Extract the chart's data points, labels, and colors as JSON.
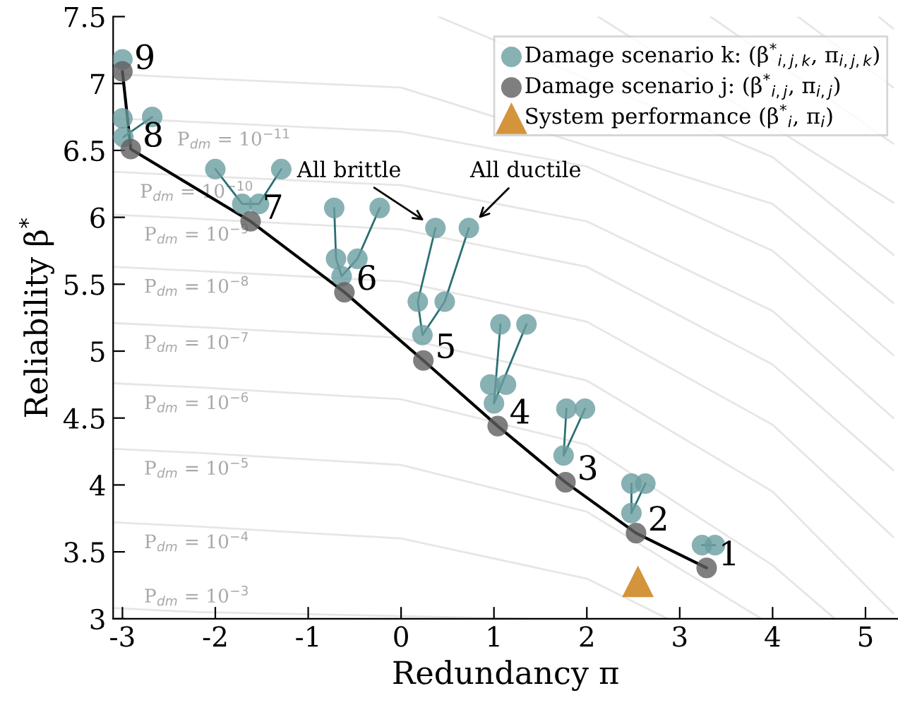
{
  "chart_data": {
    "type": "scatter",
    "xlabel": "Redundancy π",
    "ylabel": "Reliability β$^{*}$",
    "xlim": [
      -3.1,
      5.35
    ],
    "ylim": [
      3,
      7.5
    ],
    "xticks": [
      -3,
      -2,
      -1,
      0,
      1,
      2,
      3,
      4,
      5
    ],
    "yticks": [
      3,
      3.5,
      4,
      4.5,
      5,
      5.5,
      6,
      6.5,
      7,
      7.5
    ],
    "grid": false,
    "legend": "top right",
    "series": [
      {
        "type": "line",
        "color": "#e6e6e6",
        "x": [
          -3.1,
          -2.2,
          0,
          1.35
        ],
        "values": [
          3.08,
          3.05,
          3.02,
          3.0
        ]
      },
      {
        "type": "line",
        "color": "#e6e6e6",
        "x": [
          -3.1,
          -2.2,
          0,
          2,
          2.87
        ],
        "values": [
          3.72,
          3.69,
          3.6,
          3.3,
          3.0
        ]
      },
      {
        "type": "line",
        "color": "#e6e6e6",
        "x": [
          -3.1,
          -2.2,
          0,
          2,
          3.88
        ],
        "values": [
          4.27,
          4.24,
          4.15,
          3.8,
          3.0
        ]
      },
      {
        "type": "line",
        "color": "#e6e6e6",
        "x": [
          -3.1,
          -2.2,
          0,
          2,
          4,
          4.67
        ],
        "values": [
          4.76,
          4.73,
          4.64,
          4.3,
          3.4,
          3.0
        ]
      },
      {
        "type": "line",
        "color": "#e6e6e6",
        "x": [
          -3.1,
          -2.2,
          0,
          2,
          4,
          5.3
        ],
        "values": [
          5.21,
          5.18,
          5.1,
          4.78,
          3.95,
          3.04
        ]
      },
      {
        "type": "line",
        "color": "#e6e6e6",
        "x": [
          -3.1,
          -2.2,
          0,
          2,
          4,
          5.3
        ],
        "values": [
          5.63,
          5.6,
          5.52,
          5.22,
          4.45,
          3.61
        ]
      },
      {
        "type": "line",
        "color": "#e6e6e6",
        "x": [
          -3.1,
          -2.2,
          0,
          2,
          4,
          5.3
        ],
        "values": [
          6.02,
          5.99,
          5.91,
          5.63,
          4.9,
          4.11
        ]
      },
      {
        "type": "line",
        "color": "#e6e6e6",
        "x": [
          -3.1,
          -2.2,
          0,
          2,
          4,
          5.3
        ],
        "values": [
          6.34,
          6.31,
          6.24,
          5.97,
          5.3,
          4.5
        ]
      },
      {
        "type": "line",
        "color": "#e6e6e6",
        "x": [
          -3.1,
          -1.8,
          0,
          2,
          4,
          5.3
        ],
        "values": [
          6.74,
          6.7,
          6.64,
          6.38,
          5.75,
          4.97
        ]
      },
      {
        "type": "line",
        "color": "#e6e6e6",
        "x": [
          -3.1,
          -2.2,
          0,
          4,
          5.3
        ],
        "values": [
          7.07,
          7.04,
          6.97,
          6.1,
          5.36
        ]
      },
      {
        "type": "line",
        "color": "#e6e6e6",
        "x": [
          0.4,
          4,
          5.3
        ],
        "values": [
          7.5,
          6.45,
          5.72
        ]
      },
      {
        "type": "line",
        "color": "#e6e6e6",
        "x": [
          2.12,
          5.3
        ],
        "values": [
          7.5,
          6.11
        ]
      },
      {
        "type": "line",
        "color": "#e6e6e6",
        "x": [
          3.33,
          5.3
        ],
        "values": [
          7.5,
          6.55
        ]
      },
      {
        "type": "line",
        "color": "#e6e6e6",
        "x": [
          4.27,
          5.3
        ],
        "values": [
          7.5,
          6.97
        ]
      },
      {
        "type": "line",
        "color": "#e6e6e6",
        "x": [
          5.14,
          5.3
        ],
        "values": [
          7.5,
          7.41
        ]
      },
      {
        "type": "line",
        "color": "#000000",
        "x": [
          -3.0,
          -2.91,
          -1.62,
          -0.61,
          0.24,
          1.04,
          1.77,
          2.53,
          3.29
        ],
        "values": [
          7.09,
          6.51,
          5.97,
          5.44,
          4.93,
          4.44,
          4.02,
          3.64,
          3.38
        ]
      },
      {
        "type": "line",
        "color": "#2a6f73",
        "x": [
          -2.99,
          -2.68
        ],
        "values": [
          6.6,
          6.75
        ]
      },
      {
        "type": "line",
        "color": "#2a6f73",
        "x": [
          -2.0,
          -1.71,
          -1.53,
          -1.29
        ],
        "values": [
          6.36,
          6.1,
          6.1,
          6.36
        ]
      },
      {
        "type": "line",
        "color": "#2a6f73",
        "x": [
          -0.72,
          -0.7,
          -0.64,
          -0.47,
          -0.23
        ],
        "values": [
          6.07,
          5.69,
          5.56,
          5.69,
          6.07
        ]
      },
      {
        "type": "line",
        "color": "#2a6f73",
        "x": [
          0.37,
          0.18,
          0.23,
          0.47,
          0.73
        ],
        "values": [
          5.92,
          5.37,
          5.12,
          5.37,
          5.92
        ]
      },
      {
        "type": "line",
        "color": "#2a6f73",
        "x": [
          1.0,
          1.07
        ],
        "values": [
          4.61,
          5.2
        ]
      },
      {
        "type": "line",
        "color": "#2a6f73",
        "x": [
          1.0,
          1.35
        ],
        "values": [
          4.61,
          5.2
        ]
      },
      {
        "type": "line",
        "color": "#2a6f73",
        "x": [
          1.75,
          1.78
        ],
        "values": [
          4.22,
          4.57
        ]
      },
      {
        "type": "line",
        "color": "#2a6f73",
        "x": [
          1.75,
          1.98
        ],
        "values": [
          4.22,
          4.57
        ]
      },
      {
        "type": "line",
        "color": "#2a6f73",
        "x": [
          2.48,
          2.48
        ],
        "values": [
          3.79,
          4.01
        ]
      },
      {
        "type": "line",
        "color": "#2a6f73",
        "x": [
          2.48,
          2.63
        ],
        "values": [
          3.79,
          4.01
        ]
      },
      {
        "type": "line",
        "color": "#2a6f73",
        "x": [
          3.24,
          3.38
        ],
        "values": [
          3.55,
          3.55
        ]
      },
      {
        "marker": "circle",
        "name": "Damage scenario k: (β$^{*}$$_{i,j,k}$, π$_{i,j,k}$)",
        "color": "#6a9ea0",
        "x": [
          -3.0,
          -3.0,
          -2.99,
          -2.68,
          -2.0,
          -1.29,
          -1.71,
          -1.53,
          -0.72,
          -0.23,
          -0.7,
          -0.47,
          -0.64,
          0.37,
          0.73,
          0.18,
          0.47,
          0.23,
          1.07,
          1.35,
          0.96,
          1.13,
          1.0,
          1.78,
          1.98,
          1.75,
          2.48,
          2.63,
          2.48,
          3.24,
          3.38
        ],
        "values": [
          7.18,
          6.74,
          6.6,
          6.75,
          6.36,
          6.36,
          6.1,
          6.1,
          6.07,
          6.07,
          5.69,
          5.69,
          5.56,
          5.92,
          5.92,
          5.37,
          5.37,
          5.12,
          5.2,
          5.2,
          4.75,
          4.75,
          4.61,
          4.57,
          4.57,
          4.22,
          4.01,
          4.01,
          3.79,
          3.55,
          3.55
        ]
      },
      {
        "marker": "circle",
        "name": "Damage scenario j: (β$^{*}$$_{i,j}$, π$_{i,j}$)",
        "color": "#5f5f5f",
        "x": [
          -3.0,
          -2.91,
          -1.62,
          -0.61,
          0.24,
          1.04,
          1.77,
          2.53,
          3.29
        ],
        "values": [
          7.09,
          6.51,
          5.97,
          5.44,
          4.93,
          4.44,
          4.02,
          3.64,
          3.38
        ]
      },
      {
        "marker": "triangle",
        "name": "System performance (β$^{*}$$_{i}$, π$_{i}$)",
        "color": "#d4943c",
        "x": [
          2.55
        ],
        "values": [
          3.28
        ]
      }
    ],
    "annotations": [
      {
        "text": "P$_{dm}$ = 10$^{−11}$",
        "x": -1.8,
        "y": 6.7
      },
      {
        "text": "P$_{dm}$ = 10$^{−10}$",
        "x": -2.2,
        "y": 6.31
      },
      {
        "text": "P$_{dm}$ = 10$^{−9}$",
        "x": -2.2,
        "y": 5.99
      },
      {
        "text": "P$_{dm}$ = 10$^{−8}$",
        "x": -2.2,
        "y": 5.6
      },
      {
        "text": "P$_{dm}$ = 10$^{−7}$",
        "x": -2.2,
        "y": 5.18
      },
      {
        "text": "P$_{dm}$ = 10$^{−6}$",
        "x": -2.2,
        "y": 4.73
      },
      {
        "text": "P$_{dm}$ = 10$^{−5}$",
        "x": -2.2,
        "y": 4.24
      },
      {
        "text": "P$_{dm}$ = 10$^{−4}$",
        "x": -2.2,
        "y": 3.69
      },
      {
        "text": "P$_{dm}$ = 10$^{−3}$",
        "x": -2.2,
        "y": 3.05
      },
      {
        "text": "9",
        "x": -3.0,
        "y": 7.09
      },
      {
        "text": "8",
        "x": -2.91,
        "y": 6.51
      },
      {
        "text": "7",
        "x": -1.62,
        "y": 5.97
      },
      {
        "text": "6",
        "x": -0.61,
        "y": 5.44
      },
      {
        "text": "5",
        "x": 0.24,
        "y": 4.93
      },
      {
        "text": "4",
        "x": 1.04,
        "y": 4.44
      },
      {
        "text": "3",
        "x": 1.77,
        "y": 4.02
      },
      {
        "text": "2",
        "x": 2.53,
        "y": 3.64
      },
      {
        "text": "1",
        "x": 3.29,
        "y": 3.38
      },
      {
        "text": "All brittle",
        "x": 0.37,
        "y": 5.92
      },
      {
        "text": "All ductile",
        "x": 0.73,
        "y": 5.92
      }
    ]
  }
}
